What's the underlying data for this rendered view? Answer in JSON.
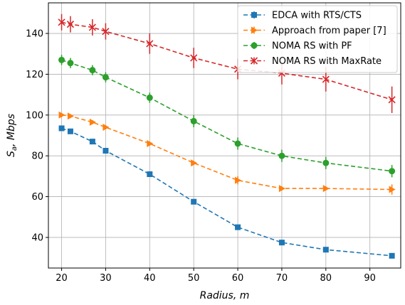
{
  "chart_data": {
    "type": "line",
    "xlabel": "Radius,  m",
    "ylabel_main": "S",
    "ylabel_sub": "a",
    "ylabel_rest": ", Mbps",
    "xlim": [
      17,
      97
    ],
    "ylim": [
      25,
      155
    ],
    "xticks": [
      20,
      30,
      40,
      50,
      60,
      70,
      80,
      90
    ],
    "yticks": [
      40,
      60,
      80,
      100,
      120,
      140
    ],
    "grid": true,
    "legend_position": "top-right",
    "series": [
      {
        "name": "EDCA with RTS/CTS",
        "color": "#1f77b4",
        "marker": "square",
        "x": [
          20,
          22,
          27,
          30,
          40,
          50,
          60,
          70,
          80,
          95
        ],
        "y": [
          93.5,
          92,
          87,
          82.5,
          71,
          57.5,
          45,
          37.5,
          34,
          31
        ],
        "err": [
          1,
          1,
          1,
          1,
          1,
          1,
          1.2,
          1,
          0.8,
          0.8
        ]
      },
      {
        "name": "Approach from paper [7]",
        "color": "#ff7f0e",
        "marker": "triangle-right",
        "x": [
          20,
          22,
          27,
          30,
          40,
          50,
          60,
          70,
          80,
          95
        ],
        "y": [
          100,
          99.5,
          96.5,
          94,
          86,
          76.5,
          68,
          64,
          64,
          63.5
        ],
        "err": [
          1,
          1,
          1,
          1,
          1,
          1,
          2,
          1,
          1,
          2.5
        ]
      },
      {
        "name": "NOMA RS with PF",
        "color": "#2ca02c",
        "marker": "circle",
        "x": [
          20,
          22,
          27,
          30,
          40,
          50,
          60,
          70,
          80,
          95
        ],
        "y": [
          127,
          125.5,
          122,
          118.5,
          108.5,
          97,
          86,
          80,
          76.5,
          72.5
        ],
        "err": [
          2.5,
          2.5,
          2.5,
          2.5,
          2.5,
          3,
          3,
          3,
          3,
          3
        ]
      },
      {
        "name": "NOMA RS with MaxRate",
        "color": "#d62728",
        "marker": "x",
        "x": [
          20,
          22,
          27,
          30,
          40,
          50,
          60,
          70,
          80,
          95
        ],
        "y": [
          145.5,
          144.5,
          143,
          141,
          135,
          128,
          122.5,
          120.5,
          117.5,
          107.5
        ],
        "err": [
          4,
          4,
          4,
          4,
          5,
          5,
          5,
          5.5,
          6,
          6.5
        ]
      }
    ]
  }
}
